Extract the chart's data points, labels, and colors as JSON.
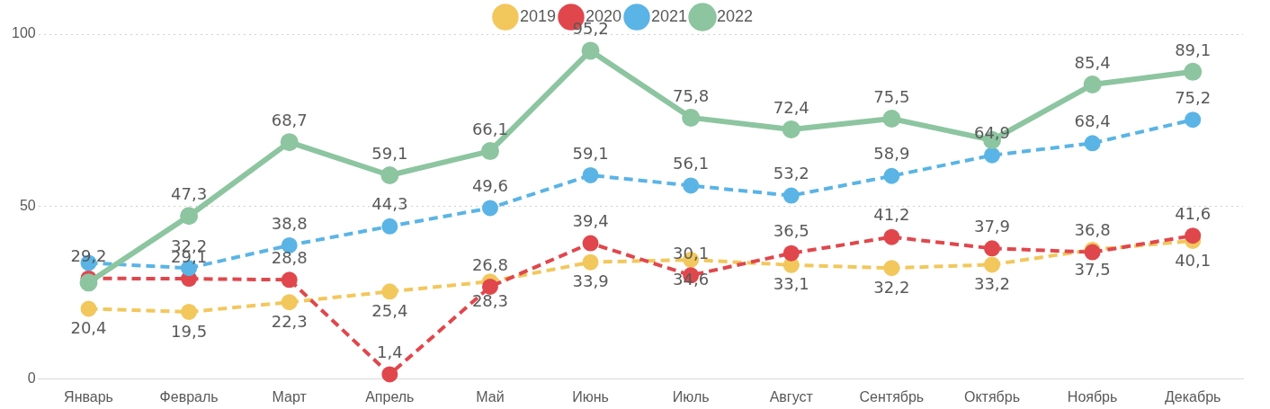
{
  "chart_data": {
    "type": "line",
    "categories": [
      "Январь",
      "Февраль",
      "Март",
      "Апрель",
      "Май",
      "Июнь",
      "Июль",
      "Август",
      "Сентябрь",
      "Октябрь",
      "Ноябрь",
      "Декабрь"
    ],
    "ylim": [
      0,
      100
    ],
    "yticks": [
      0,
      50,
      100
    ],
    "grid": "y",
    "legend": "top",
    "marker": "circle",
    "series": [
      {
        "name": "2019",
        "color": "#f2c75c",
        "line_style": "dashed",
        "values": [
          20.4,
          19.5,
          22.3,
          25.4,
          28.3,
          33.9,
          34.6,
          33.1,
          32.2,
          33.2,
          37.5,
          40.1
        ],
        "value_labels": [
          "20,4",
          "19,5",
          "22,3",
          "25,4",
          "28,3",
          "33,9",
          "34,6",
          "33,1",
          "32,2",
          "33,2",
          "37,5",
          "40,1"
        ]
      },
      {
        "name": "2020",
        "color": "#e0474c",
        "line_style": "dashed",
        "values": [
          29.2,
          29.1,
          28.8,
          1.4,
          26.8,
          39.4,
          30.1,
          36.5,
          41.2,
          37.9,
          36.8,
          41.6
        ],
        "value_labels": [
          "29,2",
          "29,1",
          "28,8",
          "1,4",
          "26,8",
          "39,4",
          "30,1",
          "36,5",
          "41,2",
          "37,9",
          "36,8",
          "41,6"
        ]
      },
      {
        "name": "2021",
        "color": "#5ab4e5",
        "line_style": "dashed",
        "values": [
          33.7,
          32.2,
          38.8,
          44.3,
          49.6,
          59.1,
          56.1,
          53.2,
          58.9,
          64.9,
          68.4,
          75.2
        ],
        "value_labels": [
          null,
          "32,2",
          "38,8",
          "44,3",
          "49,6",
          "59,1",
          "56,1",
          "53,2",
          "58,9",
          "64,9",
          "68,4",
          "75,2"
        ]
      },
      {
        "name": "2022",
        "color": "#8cc5a0",
        "line_style": "solid",
        "values": [
          28,
          47.3,
          68.7,
          59.1,
          66.1,
          95.2,
          75.8,
          72.4,
          75.5,
          69.3,
          85.4,
          89.1
        ],
        "value_labels": [
          null,
          "47,3",
          "68,7",
          "59,1",
          "66,1",
          "95,2",
          "75,8",
          "72,4",
          "75,5",
          null,
          "85,4",
          "89,1"
        ]
      }
    ]
  }
}
